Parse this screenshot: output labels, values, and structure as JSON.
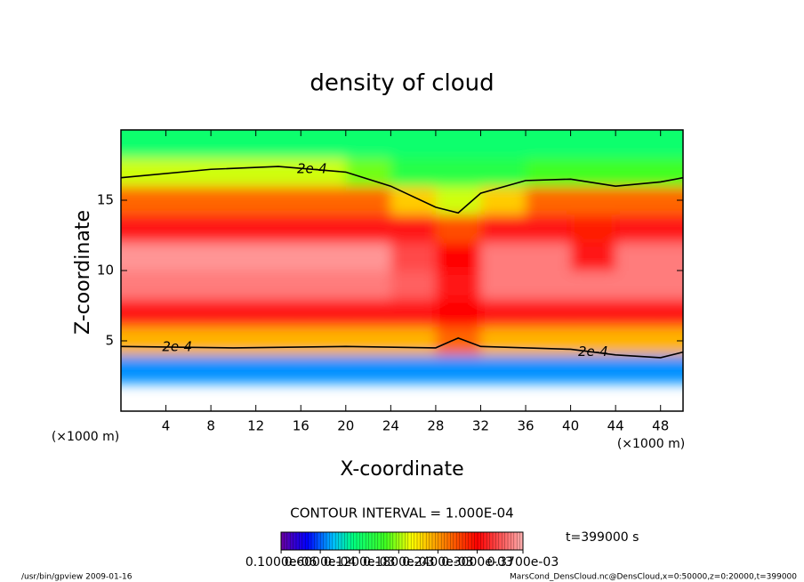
{
  "chart_data": {
    "type": "heatmap",
    "title": "density of cloud",
    "xlabel": "X-coordinate",
    "ylabel": "Z-coordinate",
    "xunit": "(×1000 m)",
    "yunit": "(×1000 m)",
    "xlim": [
      0,
      50
    ],
    "ylim": [
      0,
      20
    ],
    "xticks": [
      4,
      8,
      12,
      16,
      20,
      24,
      28,
      32,
      36,
      40,
      44,
      48
    ],
    "yticks": [
      5,
      10,
      15
    ],
    "x_edges": [
      0,
      4,
      8,
      12,
      16,
      20,
      24,
      28,
      32,
      36,
      40,
      44,
      48,
      50
    ],
    "y_edges": [
      0,
      2,
      4,
      6,
      8,
      10,
      12,
      14,
      16,
      18,
      20
    ],
    "z": [
      [
        null,
        null,
        null,
        null,
        null,
        null,
        null,
        null,
        null,
        null,
        null,
        null,
        null
      ],
      [
        7e-05,
        7e-05,
        7e-05,
        7e-05,
        7e-05,
        7e-05,
        7e-05,
        7e-05,
        7e-05,
        7e-05,
        7e-05,
        7e-05,
        7e-05
      ],
      [
        0.00023,
        0.00023,
        0.00023,
        0.00023,
        0.00023,
        0.00023,
        0.00023,
        0.00026,
        0.00023,
        0.00023,
        0.00023,
        0.00023,
        0.00023
      ],
      [
        0.00031,
        0.00031,
        0.00031,
        0.00031,
        0.00031,
        0.00031,
        0.00031,
        0.0003,
        0.00031,
        0.00031,
        0.00031,
        0.00031,
        0.00031
      ],
      [
        0.00035,
        0.00035,
        0.00035,
        0.00035,
        0.00035,
        0.00035,
        0.00034,
        0.00031,
        0.00035,
        0.00035,
        0.00035,
        0.00035,
        0.00035
      ],
      [
        0.00036,
        0.00036,
        0.00036,
        0.00036,
        0.00036,
        0.00036,
        0.00033,
        0.0003,
        0.00035,
        0.00035,
        0.00031,
        0.00035,
        0.00035
      ],
      [
        0.00031,
        0.00031,
        0.00031,
        0.00031,
        0.00031,
        0.00031,
        0.00031,
        0.00027,
        0.00031,
        0.00031,
        0.00029,
        0.00031,
        0.00031
      ],
      [
        0.00026,
        0.00026,
        0.00026,
        0.00026,
        0.00026,
        0.00026,
        0.00022,
        0.00019,
        0.00022,
        0.00026,
        0.00026,
        0.00026,
        0.00026
      ],
      [
        0.00019,
        0.00019,
        0.00019,
        0.00019,
        0.00019,
        0.00017,
        0.00014,
        0.00014,
        0.00014,
        0.00016,
        0.00016,
        0.00016,
        0.00016
      ],
      [
        0.00012,
        0.00012,
        0.00012,
        0.00012,
        0.00012,
        0.00012,
        0.00012,
        0.00012,
        0.00012,
        0.00012,
        0.00012,
        0.00012,
        0.00012
      ]
    ],
    "colormap": [
      {
        "value": 0,
        "color": "#6a00a0"
      },
      {
        "value": 4e-05,
        "color": "#0000ff"
      },
      {
        "value": 8e-05,
        "color": "#00c0ff"
      },
      {
        "value": 0.00011,
        "color": "#00ff80"
      },
      {
        "value": 0.00016,
        "color": "#40ff20"
      },
      {
        "value": 0.0002,
        "color": "#ffff00"
      },
      {
        "value": 0.00025,
        "color": "#ff8000"
      },
      {
        "value": 0.0003,
        "color": "#ff0000"
      },
      {
        "value": 0.00034,
        "color": "#ff6060"
      },
      {
        "value": 0.00037,
        "color": "#ffb0b0"
      }
    ],
    "contours": [
      {
        "label": "2e-4",
        "value": 0.0002,
        "x": [
          0,
          8,
          14,
          20,
          24,
          28,
          30,
          32,
          36,
          40,
          44,
          48,
          50
        ],
        "y": [
          16.6,
          17.2,
          17.4,
          17.0,
          16.0,
          14.5,
          14.1,
          15.5,
          16.4,
          16.5,
          16.0,
          16.3,
          16.6
        ]
      },
      {
        "label": "2e-4",
        "value": 0.0002,
        "x": [
          0,
          10,
          20,
          28,
          30,
          32,
          40,
          44,
          48,
          50
        ],
        "y": [
          4.6,
          4.5,
          4.6,
          4.5,
          5.2,
          4.6,
          4.4,
          4.0,
          3.8,
          4.2
        ]
      }
    ],
    "contour_interval": "CONTOUR INTERVAL = 1.000E-04",
    "time_label": "t=399000 s",
    "colorbar_lim": [
      0,
      0.00037
    ],
    "colorbar_ticks": [
      {
        "value": 1e-07,
        "label": "0.1000e-06"
      },
      {
        "value": 6e-05,
        "label": "0.6000e-04"
      },
      {
        "value": 0.00012,
        "label": "0.1200e-03"
      },
      {
        "value": 0.00018,
        "label": "0.1800e-03"
      },
      {
        "value": 0.00024,
        "label": "0.2400e-03"
      },
      {
        "value": 0.0003,
        "label": "0.3000e-03"
      },
      {
        "value": 0.00037,
        "label": "0.3700e-03"
      }
    ],
    "footer_left": "/usr/bin/gpview   2009-01-16",
    "footer_right": "MarsCond_DensCloud.nc@DensCloud,x=0:50000,z=0:20000,t=399000"
  }
}
